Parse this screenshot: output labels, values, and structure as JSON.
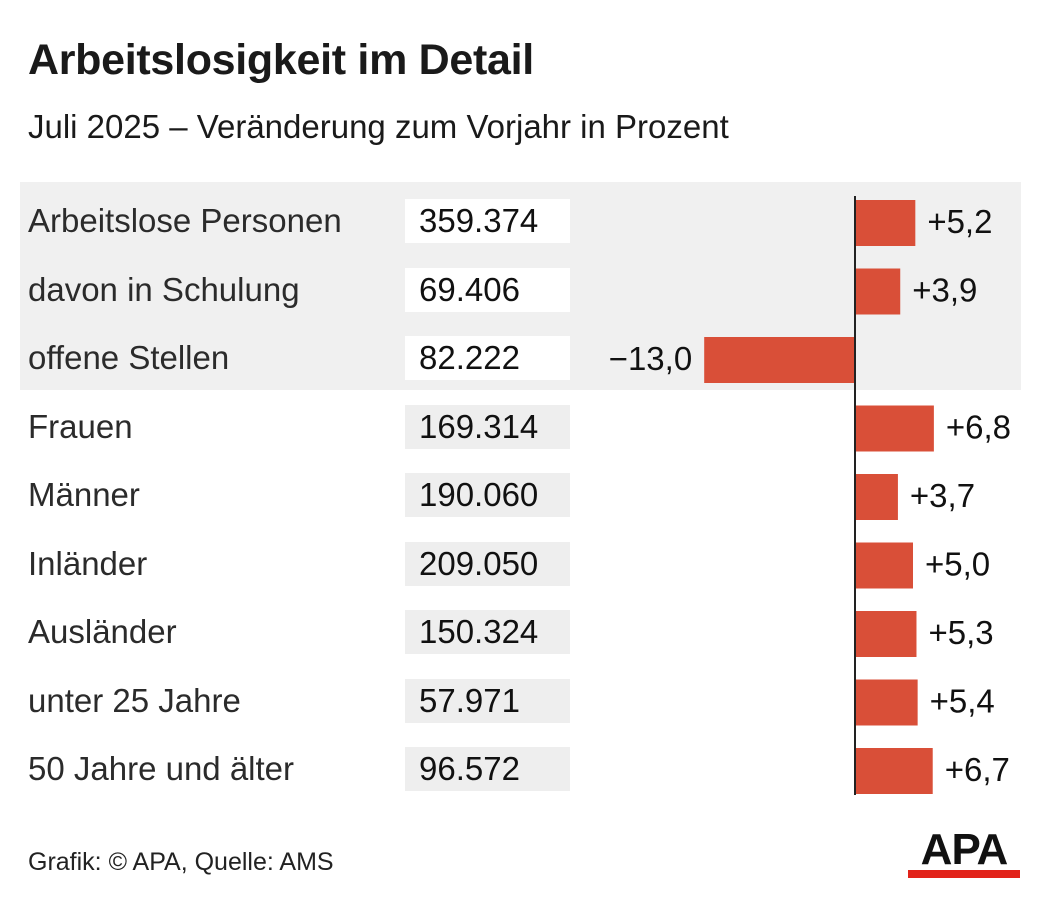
{
  "title": "Arbeitslosigkeit im Detail",
  "subtitle": "Juli 2025 – Veränderung zum Vorjahr in Prozent",
  "footer": "Grafik: © APA, Quelle: AMS",
  "logo_text": "APA",
  "colors": {
    "bar": "#d94f38",
    "panel": "#f0f0f0",
    "logo_red": "#e2231a"
  },
  "chart_data": {
    "type": "bar",
    "orientation": "horizontal",
    "categories": [
      "Arbeitslose Personen",
      "davon in Schulung",
      "offene Stellen",
      "Frauen",
      "Männer",
      "Inländer",
      "Ausländer",
      "unter 25 Jahre",
      "50 Jahre und älter"
    ],
    "absolute_values": [
      "359.374",
      "69.406",
      "82.222",
      "169.314",
      "190.060",
      "209.050",
      "150.324",
      "57.971",
      "96.572"
    ],
    "values": [
      5.2,
      3.9,
      -13.0,
      6.8,
      3.7,
      5.0,
      5.3,
      5.4,
      6.7
    ],
    "value_labels": [
      "+5,2",
      "+3,9",
      "−13,0",
      "+6,8",
      "+3,7",
      "+5,0",
      "+5,3",
      "+5,4",
      "+6,7"
    ],
    "highlighted_group": [
      "Arbeitslose Personen",
      "davon in Schulung",
      "offene Stellen"
    ]
  }
}
